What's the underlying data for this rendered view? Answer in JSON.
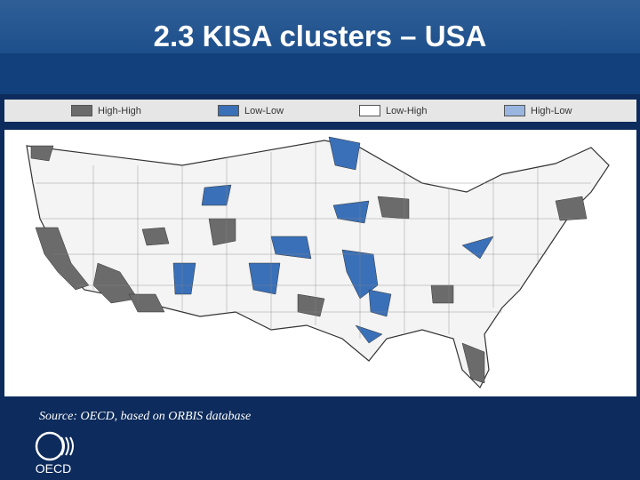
{
  "header": {
    "title": "2.3 KISA clusters – USA"
  },
  "legend": {
    "items": [
      {
        "label": "High-High",
        "color": "#6b6b6b"
      },
      {
        "label": "Low-Low",
        "color": "#3a70b8"
      },
      {
        "label": "Low-High",
        "color": "#ffffff"
      },
      {
        "label": "High-Low",
        "color": "#9ab6e0"
      }
    ]
  },
  "source": "Source: OECD, based on ORBIS database",
  "logo": {
    "text": "OECD"
  }
}
